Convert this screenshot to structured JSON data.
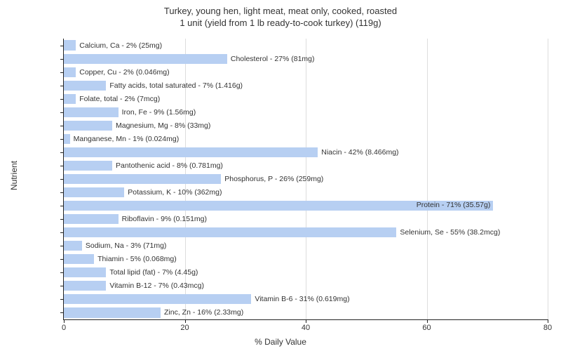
{
  "title_line1": "Turkey, young hen, light meat, meat only, cooked, roasted",
  "title_line2": "1 unit (yield from 1 lb ready-to-cook turkey) (119g)",
  "chart": {
    "type": "bar-horizontal",
    "xlabel": "% Daily Value",
    "ylabel": "Nutrient",
    "xlim": [
      0,
      80
    ],
    "xtick_step": 20,
    "bar_color": "#b7cff2",
    "grid_color": "#dddddd",
    "axis_color": "#222222",
    "background_color": "#ffffff",
    "label_fontsize": 10.5,
    "tick_fontsize": 11,
    "bars": [
      {
        "label": "Calcium, Ca - 2% (25mg)",
        "value": 2
      },
      {
        "label": "Cholesterol - 27% (81mg)",
        "value": 27
      },
      {
        "label": "Copper, Cu - 2% (0.046mg)",
        "value": 2
      },
      {
        "label": "Fatty acids, total saturated - 7% (1.416g)",
        "value": 7
      },
      {
        "label": "Folate, total - 2% (7mcg)",
        "value": 2
      },
      {
        "label": "Iron, Fe - 9% (1.56mg)",
        "value": 9
      },
      {
        "label": "Magnesium, Mg - 8% (33mg)",
        "value": 8
      },
      {
        "label": "Manganese, Mn - 1% (0.024mg)",
        "value": 1
      },
      {
        "label": "Niacin - 42% (8.466mg)",
        "value": 42
      },
      {
        "label": "Pantothenic acid - 8% (0.781mg)",
        "value": 8
      },
      {
        "label": "Phosphorus, P - 26% (259mg)",
        "value": 26
      },
      {
        "label": "Potassium, K - 10% (362mg)",
        "value": 10
      },
      {
        "label": "Protein - 71% (35.57g)",
        "value": 71,
        "label_inside": true
      },
      {
        "label": "Riboflavin - 9% (0.151mg)",
        "value": 9
      },
      {
        "label": "Selenium, Se - 55% (38.2mcg)",
        "value": 55
      },
      {
        "label": "Sodium, Na - 3% (71mg)",
        "value": 3
      },
      {
        "label": "Thiamin - 5% (0.068mg)",
        "value": 5
      },
      {
        "label": "Total lipid (fat) - 7% (4.45g)",
        "value": 7
      },
      {
        "label": "Vitamin B-12 - 7% (0.43mcg)",
        "value": 7
      },
      {
        "label": "Vitamin B-6 - 31% (0.619mg)",
        "value": 31
      },
      {
        "label": "Zinc, Zn - 16% (2.33mg)",
        "value": 16
      }
    ]
  }
}
